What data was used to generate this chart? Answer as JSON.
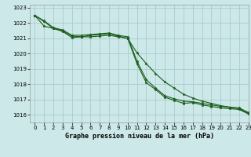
{
  "title": "Graphe pression niveau de la mer (hPa)",
  "background_color": "#cce8e8",
  "grid_color": "#aacccc",
  "line_color": "#1a5c1a",
  "xlim": [
    -0.5,
    23
  ],
  "ylim": [
    1015.5,
    1023.2
  ],
  "yticks": [
    1016,
    1017,
    1018,
    1019,
    1020,
    1021,
    1022,
    1023
  ],
  "xticks": [
    0,
    1,
    2,
    3,
    4,
    5,
    6,
    7,
    8,
    9,
    10,
    11,
    12,
    13,
    14,
    15,
    16,
    17,
    18,
    19,
    20,
    21,
    22,
    23
  ],
  "series1_y": [
    1022.5,
    1022.1,
    1021.65,
    1021.5,
    1021.15,
    1021.1,
    1021.1,
    1021.15,
    1021.2,
    1021.1,
    1021.0,
    1020.05,
    1019.35,
    1018.7,
    1018.15,
    1017.75,
    1017.35,
    1017.1,
    1016.9,
    1016.75,
    1016.6,
    1016.5,
    1016.4,
    1016.1
  ],
  "series2_y": [
    1022.5,
    1022.15,
    1021.7,
    1021.55,
    1021.2,
    1021.2,
    1021.25,
    1021.3,
    1021.35,
    1021.2,
    1021.1,
    1019.5,
    1018.3,
    1017.75,
    1017.25,
    1017.05,
    1016.9,
    1016.85,
    1016.75,
    1016.65,
    1016.55,
    1016.5,
    1016.45,
    1016.15
  ],
  "series3_y": [
    1022.5,
    1021.8,
    1021.65,
    1021.45,
    1021.05,
    1021.1,
    1021.2,
    1021.25,
    1021.3,
    1021.15,
    1021.0,
    1019.35,
    1018.1,
    1017.65,
    1017.15,
    1016.95,
    1016.75,
    1016.8,
    1016.65,
    1016.55,
    1016.45,
    1016.4,
    1016.35,
    1016.05
  ],
  "title_fontsize": 6,
  "tick_fontsize": 5
}
